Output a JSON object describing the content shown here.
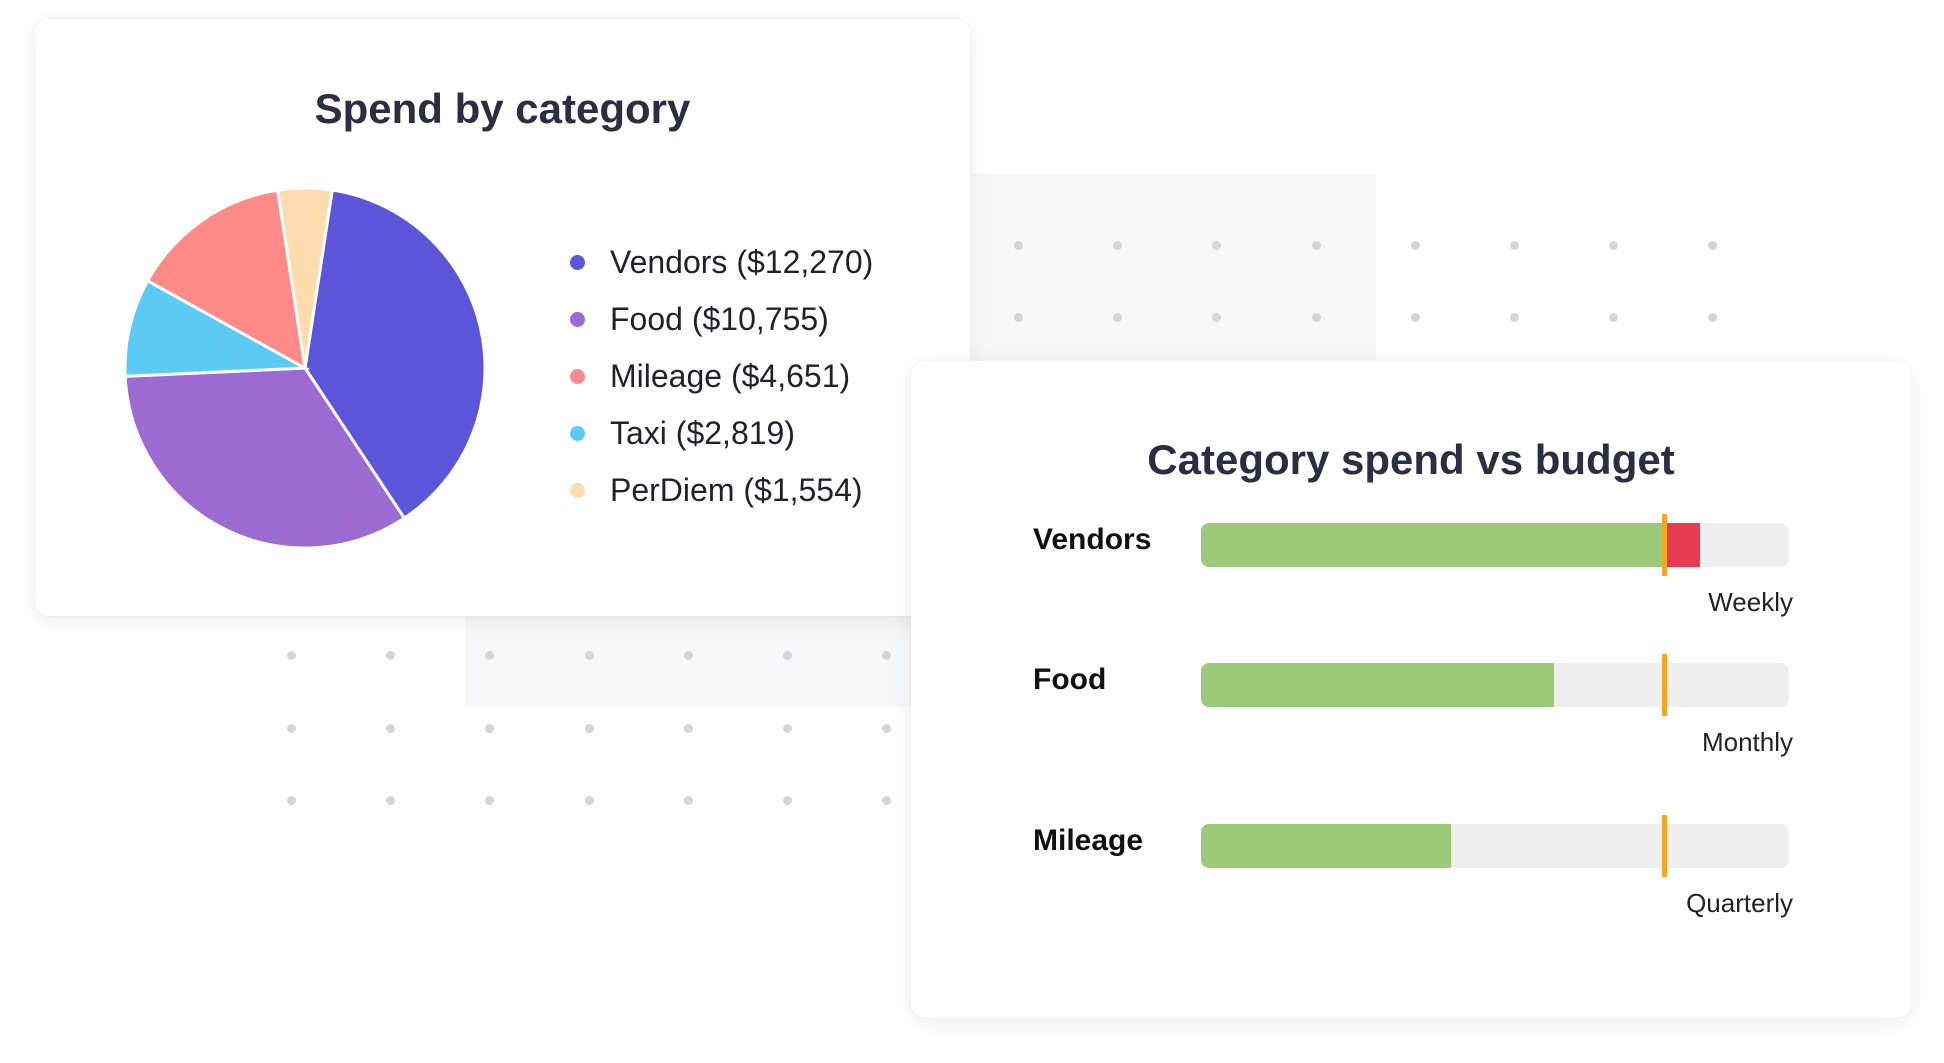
{
  "chart_data": [
    {
      "type": "pie",
      "title": "Spend by category",
      "slices": [
        {
          "label": "Vendors ($12,270)",
          "name": "Vendors",
          "value": 12270,
          "color": "#5b55d9"
        },
        {
          "label": "Food ($10,755)",
          "name": "Food",
          "value": 10755,
          "color": "#9b6bd1"
        },
        {
          "label": "Mileage ($4,651)",
          "name": "Mileage",
          "value": 4651,
          "color": "#ff8a87"
        },
        {
          "label": "Taxi ($2,819)",
          "name": "Taxi",
          "value": 2819,
          "color": "#5bcbf5"
        },
        {
          "label": "PerDiem ($1,554)",
          "name": "PerDiem",
          "value": 1554,
          "color": "#ffdcae"
        }
      ],
      "draw_order_clockwise": [
        "Vendors",
        "Food",
        "Taxi",
        "Mileage",
        "PerDiem"
      ],
      "legend": "right"
    },
    {
      "type": "bar",
      "orientation": "horizontal",
      "title": "Category spend vs budget",
      "rows": [
        {
          "label": "Vendors",
          "period": "Weekly",
          "spend_pct": 84.8,
          "budget_pct": 78.7,
          "over_budget": true
        },
        {
          "label": "Food",
          "period": "Monthly",
          "spend_pct": 60.1,
          "budget_pct": 78.7,
          "over_budget": false
        },
        {
          "label": "Mileage",
          "period": "Quarterly",
          "spend_pct": 42.6,
          "budget_pct": 78.7,
          "over_budget": false
        }
      ],
      "colors": {
        "within": "#9bcb78",
        "over": "#e83a50",
        "budget_marker": "#f5a623",
        "track": "#eeeeee"
      }
    }
  ]
}
